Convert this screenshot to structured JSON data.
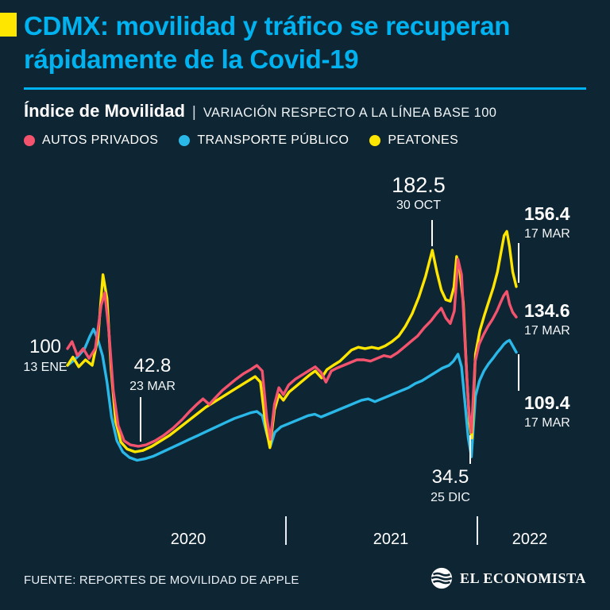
{
  "header": {
    "title_line1": "CDMX: movilidad y tráfico se recuperan",
    "title_line2": "rápidamente de la Covid-19",
    "accent_color": "#00b2ef",
    "marker_color": "#ffe600",
    "subtitle_divider": "|"
  },
  "footer": {
    "source": "FUENTE: REPORTES DE MOVILIDAD DE APPLE",
    "brand": "EL ECONOMISTA"
  },
  "chart_data": {
    "type": "line",
    "title": "Índice de Movilidad",
    "subtitle": "VARIACIÓN RESPECTO A LA LÍNEA BASE 100",
    "baseline": 100,
    "x_range": [
      "13 ENE 2020",
      "17 MAR 2022"
    ],
    "x_tick_labels": [
      "2020",
      "2021",
      "2022"
    ],
    "ylim": [
      20,
      205
    ],
    "grid": false,
    "background": "#0e2533",
    "annotations": {
      "baseline": {
        "value": "100",
        "date": "13 ENE"
      },
      "crash_2020": {
        "value": "42.8",
        "date": "23 MAR"
      },
      "peak_2021": {
        "value": "182.5",
        "date": "30 OCT"
      },
      "dip_2021": {
        "value": "34.5",
        "date": "25 DIC"
      },
      "end_autos": {
        "value": "134.6",
        "date": "17 MAR"
      },
      "end_transporte": {
        "value": "109.4",
        "date": "17 MAR"
      },
      "end_peatones": {
        "value": "156.4",
        "date": "17 MAR"
      }
    },
    "series": [
      {
        "id": "autos",
        "name": "AUTOS PRIVADOS",
        "color": "#f4536e",
        "end_value": 134.6,
        "points": [
          [
            0.0,
            112
          ],
          [
            0.01,
            117
          ],
          [
            0.022,
            107
          ],
          [
            0.035,
            112
          ],
          [
            0.048,
            105
          ],
          [
            0.062,
            112
          ],
          [
            0.075,
            143
          ],
          [
            0.083,
            152
          ],
          [
            0.092,
            125
          ],
          [
            0.102,
            82
          ],
          [
            0.113,
            57
          ],
          [
            0.126,
            46
          ],
          [
            0.14,
            43
          ],
          [
            0.158,
            42
          ],
          [
            0.175,
            43
          ],
          [
            0.195,
            46
          ],
          [
            0.215,
            50
          ],
          [
            0.235,
            55
          ],
          [
            0.255,
            61
          ],
          [
            0.272,
            67
          ],
          [
            0.288,
            72
          ],
          [
            0.302,
            76
          ],
          [
            0.316,
            72
          ],
          [
            0.33,
            77
          ],
          [
            0.345,
            82
          ],
          [
            0.36,
            86
          ],
          [
            0.375,
            90
          ],
          [
            0.392,
            94
          ],
          [
            0.408,
            97
          ],
          [
            0.422,
            100
          ],
          [
            0.434,
            96
          ],
          [
            0.444,
            62
          ],
          [
            0.452,
            47
          ],
          [
            0.461,
            72
          ],
          [
            0.471,
            84
          ],
          [
            0.481,
            79
          ],
          [
            0.493,
            86
          ],
          [
            0.507,
            90
          ],
          [
            0.522,
            93
          ],
          [
            0.537,
            96
          ],
          [
            0.552,
            99
          ],
          [
            0.565,
            95
          ],
          [
            0.576,
            88
          ],
          [
            0.588,
            96
          ],
          [
            0.6,
            98
          ],
          [
            0.615,
            100
          ],
          [
            0.63,
            102
          ],
          [
            0.645,
            104
          ],
          [
            0.66,
            104
          ],
          [
            0.675,
            103
          ],
          [
            0.69,
            105
          ],
          [
            0.705,
            107
          ],
          [
            0.72,
            106
          ],
          [
            0.735,
            109
          ],
          [
            0.75,
            113
          ],
          [
            0.765,
            117
          ],
          [
            0.78,
            121
          ],
          [
            0.795,
            127
          ],
          [
            0.81,
            132
          ],
          [
            0.822,
            137
          ],
          [
            0.833,
            141
          ],
          [
            0.843,
            134
          ],
          [
            0.853,
            130
          ],
          [
            0.862,
            139
          ],
          [
            0.87,
            176
          ],
          [
            0.878,
            165
          ],
          [
            0.886,
            115
          ],
          [
            0.894,
            68
          ],
          [
            0.9,
            52
          ],
          [
            0.908,
            102
          ],
          [
            0.917,
            115
          ],
          [
            0.927,
            122
          ],
          [
            0.937,
            128
          ],
          [
            0.947,
            133
          ],
          [
            0.957,
            139
          ],
          [
            0.965,
            145
          ],
          [
            0.972,
            150
          ],
          [
            0.979,
            153
          ],
          [
            0.985,
            144
          ],
          [
            0.992,
            138
          ],
          [
            1.0,
            134.6
          ]
        ]
      },
      {
        "id": "transporte",
        "name": "TRANSPORTE PÚBLICO",
        "color": "#29b8e8",
        "end_value": 109.4,
        "points": [
          [
            0.0,
            100
          ],
          [
            0.012,
            103
          ],
          [
            0.025,
            107
          ],
          [
            0.038,
            112
          ],
          [
            0.05,
            121
          ],
          [
            0.058,
            126
          ],
          [
            0.068,
            118
          ],
          [
            0.078,
            107
          ],
          [
            0.088,
            88
          ],
          [
            0.098,
            63
          ],
          [
            0.11,
            46
          ],
          [
            0.123,
            38
          ],
          [
            0.138,
            34
          ],
          [
            0.155,
            32
          ],
          [
            0.172,
            33
          ],
          [
            0.192,
            35
          ],
          [
            0.212,
            38
          ],
          [
            0.232,
            41
          ],
          [
            0.252,
            44
          ],
          [
            0.272,
            47
          ],
          [
            0.292,
            50
          ],
          [
            0.312,
            53
          ],
          [
            0.332,
            56
          ],
          [
            0.352,
            59
          ],
          [
            0.372,
            62
          ],
          [
            0.39,
            64
          ],
          [
            0.408,
            66
          ],
          [
            0.422,
            67
          ],
          [
            0.434,
            64
          ],
          [
            0.444,
            51
          ],
          [
            0.452,
            42
          ],
          [
            0.462,
            52
          ],
          [
            0.476,
            56
          ],
          [
            0.491,
            58
          ],
          [
            0.506,
            60
          ],
          [
            0.521,
            62
          ],
          [
            0.536,
            64
          ],
          [
            0.551,
            65
          ],
          [
            0.565,
            63
          ],
          [
            0.58,
            65
          ],
          [
            0.595,
            67
          ],
          [
            0.61,
            69
          ],
          [
            0.625,
            71
          ],
          [
            0.64,
            73
          ],
          [
            0.655,
            75
          ],
          [
            0.67,
            76
          ],
          [
            0.685,
            74
          ],
          [
            0.7,
            76
          ],
          [
            0.715,
            78
          ],
          [
            0.73,
            80
          ],
          [
            0.745,
            82
          ],
          [
            0.76,
            84
          ],
          [
            0.775,
            87
          ],
          [
            0.79,
            89
          ],
          [
            0.805,
            92
          ],
          [
            0.82,
            95
          ],
          [
            0.835,
            98
          ],
          [
            0.85,
            100
          ],
          [
            0.86,
            103
          ],
          [
            0.87,
            108
          ],
          [
            0.878,
            99
          ],
          [
            0.886,
            72
          ],
          [
            0.893,
            48
          ],
          [
            0.9,
            34.5
          ],
          [
            0.909,
            78
          ],
          [
            0.918,
            89
          ],
          [
            0.928,
            96
          ],
          [
            0.938,
            101
          ],
          [
            0.948,
            105
          ],
          [
            0.957,
            109
          ],
          [
            0.965,
            112
          ],
          [
            0.972,
            115
          ],
          [
            0.979,
            117
          ],
          [
            0.985,
            118
          ],
          [
            0.992,
            114
          ],
          [
            1.0,
            109.4
          ]
        ]
      },
      {
        "id": "peatones",
        "name": "PEATONES",
        "color": "#ffe600",
        "end_value": 156.4,
        "points": [
          [
            0.0,
            100
          ],
          [
            0.012,
            106
          ],
          [
            0.025,
            99
          ],
          [
            0.04,
            104
          ],
          [
            0.055,
            100
          ],
          [
            0.068,
            120
          ],
          [
            0.079,
            165
          ],
          [
            0.088,
            148
          ],
          [
            0.097,
            98
          ],
          [
            0.107,
            60
          ],
          [
            0.119,
            45
          ],
          [
            0.133,
            40
          ],
          [
            0.15,
            38
          ],
          [
            0.168,
            39
          ],
          [
            0.188,
            42
          ],
          [
            0.208,
            46
          ],
          [
            0.228,
            50
          ],
          [
            0.248,
            55
          ],
          [
            0.268,
            60
          ],
          [
            0.288,
            65
          ],
          [
            0.308,
            70
          ],
          [
            0.328,
            74
          ],
          [
            0.348,
            78
          ],
          [
            0.368,
            82
          ],
          [
            0.388,
            86
          ],
          [
            0.403,
            89
          ],
          [
            0.418,
            92
          ],
          [
            0.43,
            88
          ],
          [
            0.442,
            56
          ],
          [
            0.451,
            41
          ],
          [
            0.461,
            68
          ],
          [
            0.471,
            79
          ],
          [
            0.481,
            75
          ],
          [
            0.494,
            81
          ],
          [
            0.509,
            85
          ],
          [
            0.524,
            89
          ],
          [
            0.539,
            93
          ],
          [
            0.552,
            96
          ],
          [
            0.566,
            91
          ],
          [
            0.578,
            97
          ],
          [
            0.592,
            100
          ],
          [
            0.607,
            103
          ],
          [
            0.62,
            107
          ],
          [
            0.633,
            111
          ],
          [
            0.648,
            113
          ],
          [
            0.663,
            112
          ],
          [
            0.678,
            113
          ],
          [
            0.693,
            112
          ],
          [
            0.708,
            114
          ],
          [
            0.723,
            117
          ],
          [
            0.738,
            121
          ],
          [
            0.753,
            128
          ],
          [
            0.768,
            137
          ],
          [
            0.783,
            149
          ],
          [
            0.798,
            164
          ],
          [
            0.813,
            182.5
          ],
          [
            0.823,
            167
          ],
          [
            0.833,
            154
          ],
          [
            0.843,
            147
          ],
          [
            0.853,
            146
          ],
          [
            0.861,
            156
          ],
          [
            0.867,
            178
          ],
          [
            0.874,
            168
          ],
          [
            0.882,
            145
          ],
          [
            0.89,
            90
          ],
          [
            0.896,
            58
          ],
          [
            0.901,
            48
          ],
          [
            0.909,
            108
          ],
          [
            0.919,
            125
          ],
          [
            0.929,
            136
          ],
          [
            0.939,
            146
          ],
          [
            0.949,
            156
          ],
          [
            0.958,
            167
          ],
          [
            0.966,
            181
          ],
          [
            0.973,
            193
          ],
          [
            0.979,
            196
          ],
          [
            0.985,
            185
          ],
          [
            0.992,
            167
          ],
          [
            1.0,
            156.4
          ]
        ]
      }
    ]
  }
}
